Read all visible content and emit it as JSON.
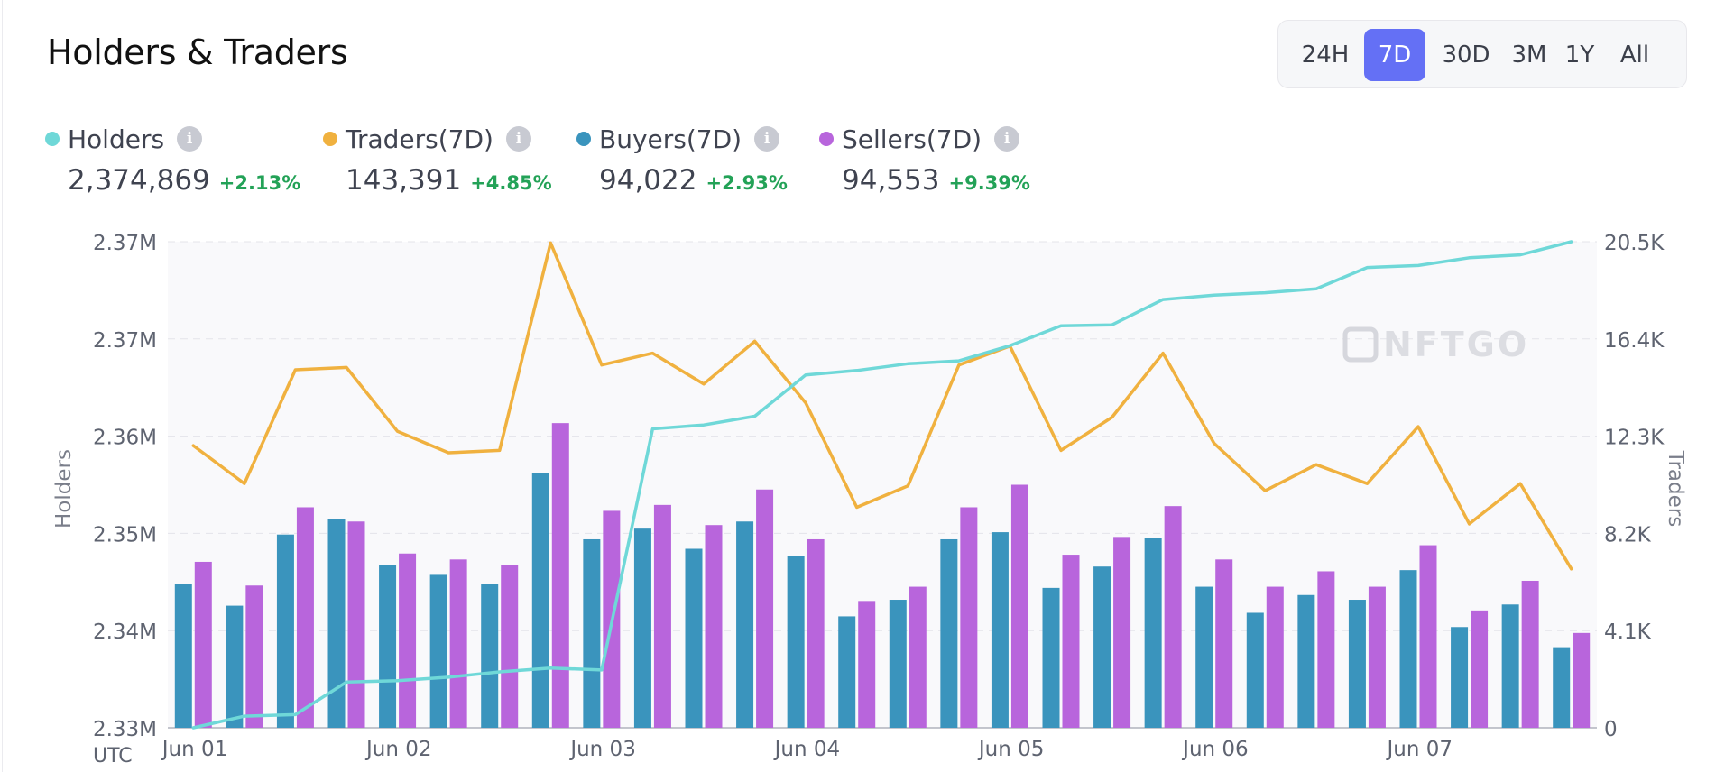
{
  "title": "Holders & Traders",
  "range_buttons": [
    {
      "label": "24H",
      "active": false
    },
    {
      "label": "7D",
      "active": true
    },
    {
      "label": "30D",
      "active": false
    },
    {
      "label": "3M",
      "active": false
    },
    {
      "label": "1Y",
      "active": false
    },
    {
      "label": "All",
      "active": false
    }
  ],
  "legend": [
    {
      "name": "Holders",
      "value": "2,374,869",
      "change": "+2.13%",
      "color": "#6fd8d8"
    },
    {
      "name": "Traders(7D)",
      "value": "143,391",
      "change": "+4.85%",
      "color": "#f0b13f"
    },
    {
      "name": "Buyers(7D)",
      "value": "94,022",
      "change": "+2.93%",
      "color": "#3a94bd"
    },
    {
      "name": "Sellers(7D)",
      "value": "94,553",
      "change": "+9.39%",
      "color": "#b865dc"
    }
  ],
  "info_glyph": "i",
  "watermark": "NFTGO",
  "utc_label": "UTC",
  "chart_data": {
    "type": "bar",
    "x_labels": [
      "Jun 01",
      "Jun 02",
      "Jun 03",
      "Jun 04",
      "Jun 05",
      "Jun 06",
      "Jun 07"
    ],
    "y_left": {
      "label": "Holders",
      "ticks": [
        "2.33M",
        "2.34M",
        "2.35M",
        "2.36M",
        "2.37M",
        "2.37M"
      ]
    },
    "y_right": {
      "label": "Traders",
      "ticks": [
        "0",
        "4.1K",
        "8.2K",
        "12.3K",
        "16.4K",
        "20.5K"
      ],
      "range": [
        0,
        20500
      ]
    },
    "holders_scale": [
      0,
      100
    ],
    "grid": true,
    "series": [
      {
        "name": "Buyers(7D)",
        "kind": "bar",
        "axis": "right",
        "color": "#3a94bd",
        "values": [
          6050,
          5150,
          8150,
          8800,
          6850,
          6450,
          6050,
          10750,
          7950,
          8400,
          7550,
          8700,
          7250,
          4700,
          5400,
          7950,
          8250,
          5900,
          6800,
          8000,
          5950,
          4850,
          5600,
          5400,
          6650,
          4250,
          5200,
          3400
        ]
      },
      {
        "name": "Sellers(7D)",
        "kind": "bar",
        "axis": "right",
        "color": "#b865dc",
        "values": [
          7000,
          6000,
          9300,
          8700,
          7350,
          7100,
          6850,
          12850,
          9150,
          9400,
          8550,
          10050,
          7950,
          5350,
          5950,
          9300,
          10250,
          7300,
          8050,
          9350,
          7100,
          5950,
          6600,
          5950,
          7700,
          4950,
          6200,
          4000
        ]
      },
      {
        "name": "Traders(7D)",
        "kind": "line",
        "axis": "right",
        "color": "#f0b13f",
        "values": [
          11900,
          10300,
          15100,
          15200,
          12500,
          11600,
          11700,
          20450,
          15300,
          15800,
          14500,
          16300,
          13700,
          9300,
          10200,
          15300,
          16100,
          11700,
          13100,
          15800,
          12000,
          10000,
          11100,
          10300,
          12700,
          8600,
          10300,
          6700
        ]
      },
      {
        "name": "Holders",
        "kind": "line",
        "axis": "left",
        "color": "#6fd8d8",
        "values": [
          0,
          2.4,
          2.7,
          9.4,
          9.7,
          10.4,
          11.5,
          12.3,
          11.9,
          61.5,
          62.3,
          64.1,
          72.6,
          73.5,
          74.9,
          75.5,
          78.6,
          82.7,
          82.9,
          88.1,
          89.0,
          89.5,
          90.3,
          94.7,
          95.1,
          96.7,
          97.3,
          100
        ]
      }
    ]
  }
}
